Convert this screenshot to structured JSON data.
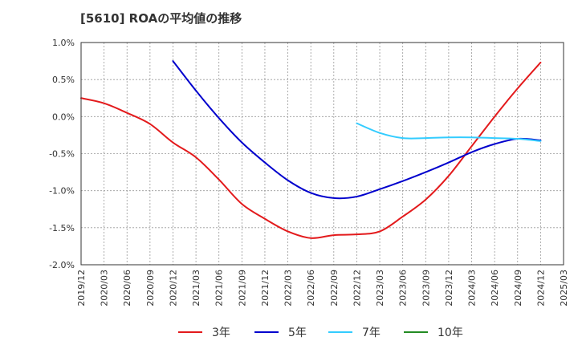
{
  "chart_data": {
    "type": "line",
    "title": "[5610]  ROAの平均値の推移",
    "xlabel": "",
    "ylabel": "",
    "ylim": [
      -2.0,
      1.0
    ],
    "yticks": [
      1.0,
      0.5,
      0.0,
      -0.5,
      -1.0,
      -1.5,
      -2.0
    ],
    "ytick_labels": [
      "1.0%",
      "0.5%",
      "0.0%",
      "-0.5%",
      "-1.0%",
      "-1.5%",
      "-2.0%"
    ],
    "x_categories": [
      "2019/12",
      "2020/03",
      "2020/06",
      "2020/09",
      "2020/12",
      "2021/03",
      "2021/06",
      "2021/09",
      "2021/12",
      "2022/03",
      "2022/06",
      "2022/09",
      "2022/12",
      "2023/03",
      "2023/06",
      "2023/09",
      "2023/12",
      "2024/03",
      "2024/06",
      "2024/09",
      "2024/12",
      "2025/03"
    ],
    "grid": true,
    "legend_position": "bottom",
    "series": [
      {
        "name": "3年",
        "color": "#e31a1c",
        "values": [
          0.25,
          0.18,
          0.05,
          -0.1,
          -0.35,
          -0.55,
          -0.85,
          -1.18,
          -1.38,
          -1.55,
          -1.64,
          -1.6,
          -1.59,
          -1.55,
          -1.35,
          -1.12,
          -0.8,
          -0.4,
          0.0,
          0.38,
          0.73,
          null
        ]
      },
      {
        "name": "5年",
        "color": "#0000cd",
        "values": [
          null,
          null,
          null,
          null,
          0.75,
          0.35,
          -0.02,
          -0.35,
          -0.62,
          -0.86,
          -1.03,
          -1.1,
          -1.08,
          -0.98,
          -0.87,
          -0.75,
          -0.62,
          -0.48,
          -0.37,
          -0.3,
          -0.32,
          null
        ]
      },
      {
        "name": "7年",
        "color": "#33ccff",
        "values": [
          null,
          null,
          null,
          null,
          null,
          null,
          null,
          null,
          null,
          null,
          null,
          null,
          -0.09,
          -0.22,
          -0.29,
          -0.29,
          -0.28,
          -0.28,
          -0.29,
          -0.3,
          -0.33,
          null
        ]
      },
      {
        "name": "10年",
        "color": "#228b22",
        "values": [
          null,
          null,
          null,
          null,
          null,
          null,
          null,
          null,
          null,
          null,
          null,
          null,
          null,
          null,
          null,
          null,
          null,
          null,
          null,
          null,
          null,
          null
        ]
      }
    ]
  }
}
